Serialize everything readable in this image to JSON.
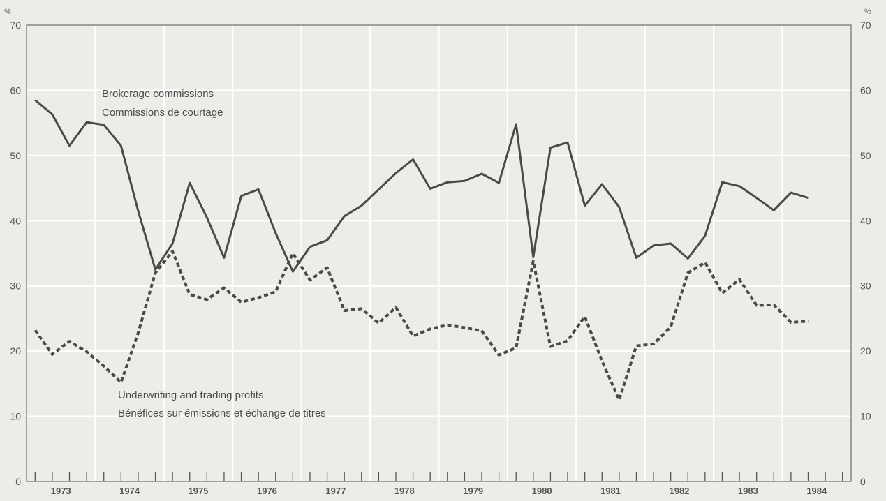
{
  "chart_data": {
    "type": "line",
    "title": "",
    "xlabel": "",
    "ylabel": "%",
    "ylabel_right": "%",
    "ylim": [
      0,
      70
    ],
    "yticks": [
      0,
      10,
      20,
      30,
      40,
      50,
      60,
      70
    ],
    "xlim": [
      1973.0,
      1985.0
    ],
    "x_tick_labels": [
      "1973",
      "1974",
      "1975",
      "1976",
      "1977",
      "1978",
      "1979",
      "1980",
      "1981",
      "1982",
      "1983",
      "1984"
    ],
    "grid": true,
    "series": [
      {
        "name": "Brokerage commissions / Commissions de courtage",
        "style": "solid",
        "color": "#4a4a4a",
        "x": [
          1973.125,
          1973.375,
          1973.625,
          1973.875,
          1974.125,
          1974.375,
          1974.625,
          1974.875,
          1975.125,
          1975.375,
          1975.625,
          1975.875,
          1976.125,
          1976.375,
          1976.625,
          1976.875,
          1977.125,
          1977.375,
          1977.625,
          1977.875,
          1978.125,
          1978.375,
          1978.625,
          1978.875,
          1979.125,
          1979.375,
          1979.625,
          1979.875,
          1980.125,
          1980.375,
          1980.625,
          1980.875,
          1981.125,
          1981.375,
          1981.625,
          1981.875,
          1982.125,
          1982.375,
          1982.625,
          1982.875,
          1983.125,
          1983.375,
          1983.625,
          1983.875,
          1984.125,
          1984.375
        ],
        "values": [
          58.5,
          56.3,
          51.5,
          55.1,
          54.7,
          51.5,
          41.5,
          32.5,
          36.5,
          45.8,
          40.5,
          34.3,
          43.8,
          44.8,
          38.1,
          32.2,
          36.0,
          37.0,
          40.7,
          42.3,
          44.8,
          47.3,
          49.4,
          44.9,
          45.9,
          46.1,
          47.2,
          45.8,
          54.8,
          34.4,
          51.2,
          52.0,
          42.3,
          45.6,
          42.1,
          34.3,
          36.2,
          36.5,
          34.2,
          37.7,
          45.9,
          45.3,
          43.5,
          41.6,
          44.3,
          43.5
        ]
      },
      {
        "name": "Underwriting and trading profits / Bénéfices sur émissions et échange de titres",
        "style": "dashed",
        "color": "#4a4a4a",
        "x": [
          1973.125,
          1973.375,
          1973.625,
          1973.875,
          1974.125,
          1974.375,
          1974.625,
          1974.875,
          1975.125,
          1975.375,
          1975.625,
          1975.875,
          1976.125,
          1976.375,
          1976.625,
          1976.875,
          1977.125,
          1977.375,
          1977.625,
          1977.875,
          1978.125,
          1978.375,
          1978.625,
          1978.875,
          1979.125,
          1979.375,
          1979.625,
          1979.875,
          1980.125,
          1980.375,
          1980.625,
          1980.875,
          1981.125,
          1981.375,
          1981.625,
          1981.875,
          1982.125,
          1982.375,
          1982.625,
          1982.875,
          1983.125,
          1983.375,
          1983.625,
          1983.875,
          1984.125,
          1984.375
        ],
        "values": [
          23.2,
          19.5,
          21.5,
          19.9,
          17.7,
          15.2,
          22.8,
          32.0,
          35.3,
          28.7,
          27.9,
          29.7,
          27.5,
          28.2,
          29.1,
          35.0,
          30.9,
          32.8,
          26.2,
          26.5,
          24.3,
          26.7,
          22.3,
          23.4,
          24.0,
          23.6,
          23.1,
          19.4,
          20.5,
          33.8,
          20.7,
          21.6,
          25.3,
          18.5,
          12.5,
          20.8,
          21.1,
          23.7,
          32.0,
          33.6,
          28.9,
          31.0,
          27.0,
          27.1,
          24.4,
          24.6
        ]
      }
    ],
    "annotations": {
      "brokerage_en": "Brokerage commissions",
      "brokerage_fr": "Commissions de courtage",
      "underwriting_en": "Underwriting and trading profits",
      "underwriting_fr": "Bénéfices sur émissions et échange de titres"
    }
  }
}
